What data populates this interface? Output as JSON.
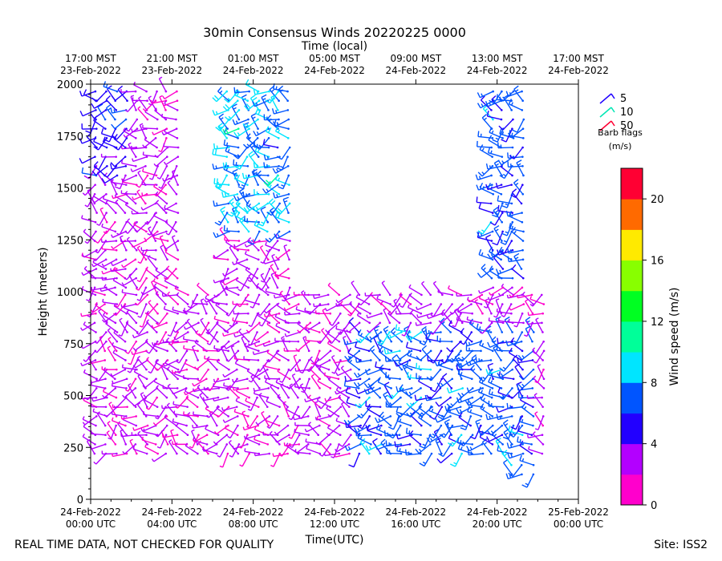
{
  "chart_data": {
    "type": "wind-barbs",
    "title": "30min Consensus Winds 20220225 0000",
    "top_axis_label": "Time (local)",
    "top_ticks": [
      {
        "line1": "17:00 MST",
        "line2": "23-Feb-2022"
      },
      {
        "line1": "21:00 MST",
        "line2": "23-Feb-2022"
      },
      {
        "line1": "01:00 MST",
        "line2": "24-Feb-2022"
      },
      {
        "line1": "05:00 MST",
        "line2": "24-Feb-2022"
      },
      {
        "line1": "09:00 MST",
        "line2": "24-Feb-2022"
      },
      {
        "line1": "13:00 MST",
        "line2": "24-Feb-2022"
      },
      {
        "line1": "17:00 MST",
        "line2": "24-Feb-2022"
      }
    ],
    "xlabel": "Time(UTC)",
    "x_ticks": [
      {
        "line1": "24-Feb-2022",
        "line2": "00:00 UTC"
      },
      {
        "line1": "24-Feb-2022",
        "line2": "04:00 UTC"
      },
      {
        "line1": "24-Feb-2022",
        "line2": "08:00 UTC"
      },
      {
        "line1": "24-Feb-2022",
        "line2": "12:00 UTC"
      },
      {
        "line1": "24-Feb-2022",
        "line2": "16:00 UTC"
      },
      {
        "line1": "24-Feb-2022",
        "line2": "20:00 UTC"
      },
      {
        "line1": "25-Feb-2022",
        "line2": "00:00 UTC"
      }
    ],
    "ylabel": "Height (meters)",
    "ylim": [
      0,
      2000
    ],
    "y_ticks": [
      "0",
      "250",
      "500",
      "750",
      "1000",
      "1250",
      "1500",
      "1750",
      "2000"
    ],
    "barb_legend": {
      "entries": [
        {
          "label": "5",
          "color": "#1f00ff"
        },
        {
          "label": "10",
          "color": "#00e6b4"
        },
        {
          "label": "50",
          "color": "#ff0033"
        }
      ],
      "title_line1": "Barb flags",
      "title_line2": "(m/s)"
    },
    "colorbar": {
      "label": "Wind speed (m/s)",
      "ticks": [
        "0",
        "4",
        "8",
        "12",
        "16",
        "20"
      ],
      "range": [
        0,
        22
      ],
      "bins": 11,
      "colors": [
        "#ff00cc",
        "#b300ff",
        "#2200ff",
        "#0055ff",
        "#00e5ff",
        "#00ff99",
        "#00ff22",
        "#88ff00",
        "#ffea00",
        "#ff6a00",
        "#ff0033"
      ]
    },
    "data_coverage": [
      {
        "t_start": "00:00 UTC",
        "t_end": "24:00 UTC",
        "z_bottom": 200,
        "z_top": 1000
      },
      {
        "t_start": "00:00 UTC",
        "t_end": "04:30 UTC",
        "z_bottom": 1000,
        "z_top": 2000
      },
      {
        "t_start": "06:30 UTC",
        "t_end": "10:00 UTC",
        "z_bottom": 1000,
        "z_top": 2000
      },
      {
        "t_start": "19:30 UTC",
        "t_end": "21:30 UTC",
        "z_bottom": 1000,
        "z_top": 2000
      },
      {
        "t_start": "20:30 UTC",
        "t_end": "22:00 UTC",
        "z_bottom": 100,
        "z_top": 200
      }
    ]
  },
  "footer": {
    "quality_note": "REAL TIME DATA, NOT CHECKED FOR QUALITY",
    "site": "Site: ISS2"
  }
}
